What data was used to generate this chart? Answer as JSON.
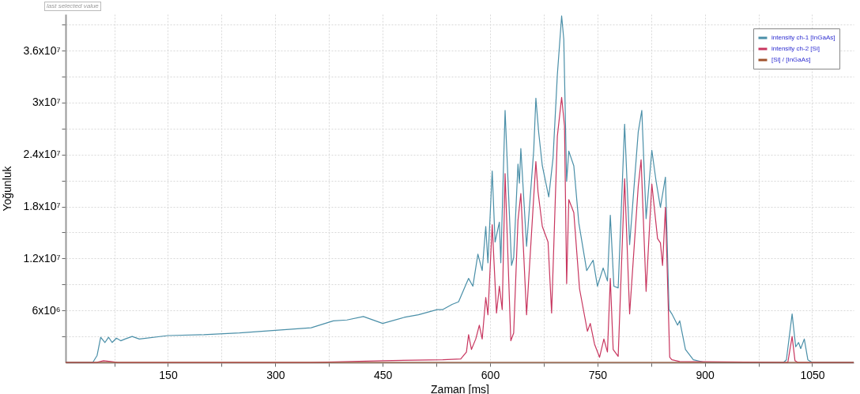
{
  "chart_data": {
    "type": "line",
    "xlabel": "Zaman [ms]",
    "ylabel": "Yoğunluk",
    "annotations": [
      "last selected value"
    ],
    "xlim": [
      7,
      1108
    ],
    "ylim": [
      0,
      40200000
    ],
    "xticks": [
      {
        "value": 75,
        "label": null
      },
      150,
      {
        "value": 225,
        "label": null
      },
      300,
      {
        "value": 375,
        "label": null
      },
      450,
      {
        "value": 525,
        "label": null
      },
      600,
      {
        "value": 675,
        "label": null
      },
      750,
      {
        "value": 825,
        "label": null
      },
      900,
      {
        "value": 975,
        "label": null
      },
      1050
    ],
    "yticks": [
      {
        "value": 3000000,
        "label": null
      },
      {
        "value": 6000000,
        "label": "6x10⁶"
      },
      {
        "value": 9000000,
        "label": null
      },
      {
        "value": 12000000,
        "label": "1.2x10⁷"
      },
      {
        "value": 15000000,
        "label": null
      },
      {
        "value": 18000000,
        "label": "1.8x10⁷"
      },
      {
        "value": 21000000,
        "label": null
      },
      {
        "value": 24000000,
        "label": "2.4x10⁷"
      },
      {
        "value": 27000000,
        "label": null
      },
      {
        "value": 30000000,
        "label": "3x10⁷"
      },
      {
        "value": 33000000,
        "label": null
      },
      {
        "value": 36000000,
        "label": "3.6x10⁷"
      },
      {
        "value": 39000000,
        "label": null
      }
    ],
    "grid": true,
    "legend": "top right",
    "marker": "none",
    "line_style": "solid",
    "series": [
      {
        "name": "intensity ch-1 [InGaAs]",
        "color": "#4a8fa8",
        "x": [
          7,
          45,
          51,
          56,
          62,
          67,
          72,
          78,
          84,
          90,
          100,
          110,
          150,
          200,
          250,
          300,
          350,
          381,
          400,
          423,
          450,
          480,
          500,
          526,
          534,
          547,
          556,
          570,
          576,
          583,
          589,
          594,
          597,
          603,
          607,
          613,
          615,
          621,
          630,
          633,
          639,
          641,
          643,
          651,
          661,
          664,
          668,
          673,
          682,
          688,
          694,
          700,
          703,
          707,
          710,
          717,
          724,
          735,
          744,
          750,
          758,
          764,
          768,
          773,
          779,
          788,
          795,
          807,
          812,
          818,
          826,
          832,
          838,
          845,
          850,
          854,
          862,
          865,
          873,
          884,
          900,
          1010,
          1014,
          1022,
          1027,
          1031,
          1034,
          1039,
          1044,
          1050,
          1108
        ],
        "values": [
          0,
          0,
          800000,
          2900000,
          2300000,
          2900000,
          2300000,
          2800000,
          2500000,
          2700000,
          3000000,
          2700000,
          3100000,
          3200000,
          3400000,
          3700000,
          4000000,
          4800000,
          4900000,
          5300000,
          4500000,
          5200000,
          5500000,
          6100000,
          6100000,
          6700000,
          7000000,
          9700000,
          8800000,
          12500000,
          10600000,
          15700000,
          11500000,
          22100000,
          13900000,
          16200000,
          11500000,
          29100000,
          11200000,
          12100000,
          22900000,
          20700000,
          24700000,
          13400000,
          24500000,
          30500000,
          26500000,
          22700000,
          19100000,
          23600000,
          33200000,
          40000000,
          37300000,
          20900000,
          24400000,
          22700000,
          16100000,
          10600000,
          11800000,
          8800000,
          10900000,
          9400000,
          17000000,
          8800000,
          8600000,
          27500000,
          13600000,
          26600000,
          29100000,
          16600000,
          24500000,
          20900000,
          17900000,
          21400000,
          6100000,
          5600000,
          4300000,
          4800000,
          1500000,
          300000,
          0,
          0,
          300000,
          5600000,
          1800000,
          2300000,
          1600000,
          2700000,
          300000,
          0,
          0
        ]
      },
      {
        "name": "intensity ch-2 [Si]",
        "color": "#c8365f",
        "x": [
          7,
          50,
          60,
          70,
          80,
          350,
          450,
          534,
          559,
          567,
          570,
          574,
          580,
          585,
          589,
          594,
          597,
          603,
          609,
          613,
          617,
          621,
          629,
          633,
          639,
          643,
          651,
          661,
          664,
          667,
          673,
          681,
          686,
          694,
          700,
          704,
          707,
          710,
          717,
          722,
          725,
          736,
          740,
          746,
          753,
          759,
          764,
          768,
          772,
          779,
          788,
          795,
          807,
          811,
          818,
          826,
          834,
          838,
          841,
          845,
          851,
          854,
          865,
          1016,
          1022,
          1026,
          1030,
          1108
        ],
        "values": [
          0,
          0,
          200000,
          100000,
          0,
          0,
          200000,
          300000,
          400000,
          1200000,
          3200000,
          1500000,
          2700000,
          4300000,
          2700000,
          7500000,
          5500000,
          15900000,
          5700000,
          8800000,
          6100000,
          21800000,
          2500000,
          3400000,
          16400000,
          19500000,
          5500000,
          19100000,
          23200000,
          19700000,
          15700000,
          13900000,
          5700000,
          26100000,
          30600000,
          27300000,
          9100000,
          18800000,
          17300000,
          11800000,
          8500000,
          3600000,
          4500000,
          2100000,
          600000,
          2700000,
          1200000,
          9700000,
          1500000,
          700000,
          21200000,
          5600000,
          20300000,
          23400000,
          8200000,
          20600000,
          14300000,
          13800000,
          11200000,
          17900000,
          600000,
          300000,
          100000,
          0,
          3000000,
          200000,
          0,
          0
        ]
      },
      {
        "name": "[Si] / [InGaAs]",
        "color": "#a0522d",
        "x": [
          7,
          1108
        ],
        "values": [
          0,
          0
        ]
      }
    ]
  }
}
